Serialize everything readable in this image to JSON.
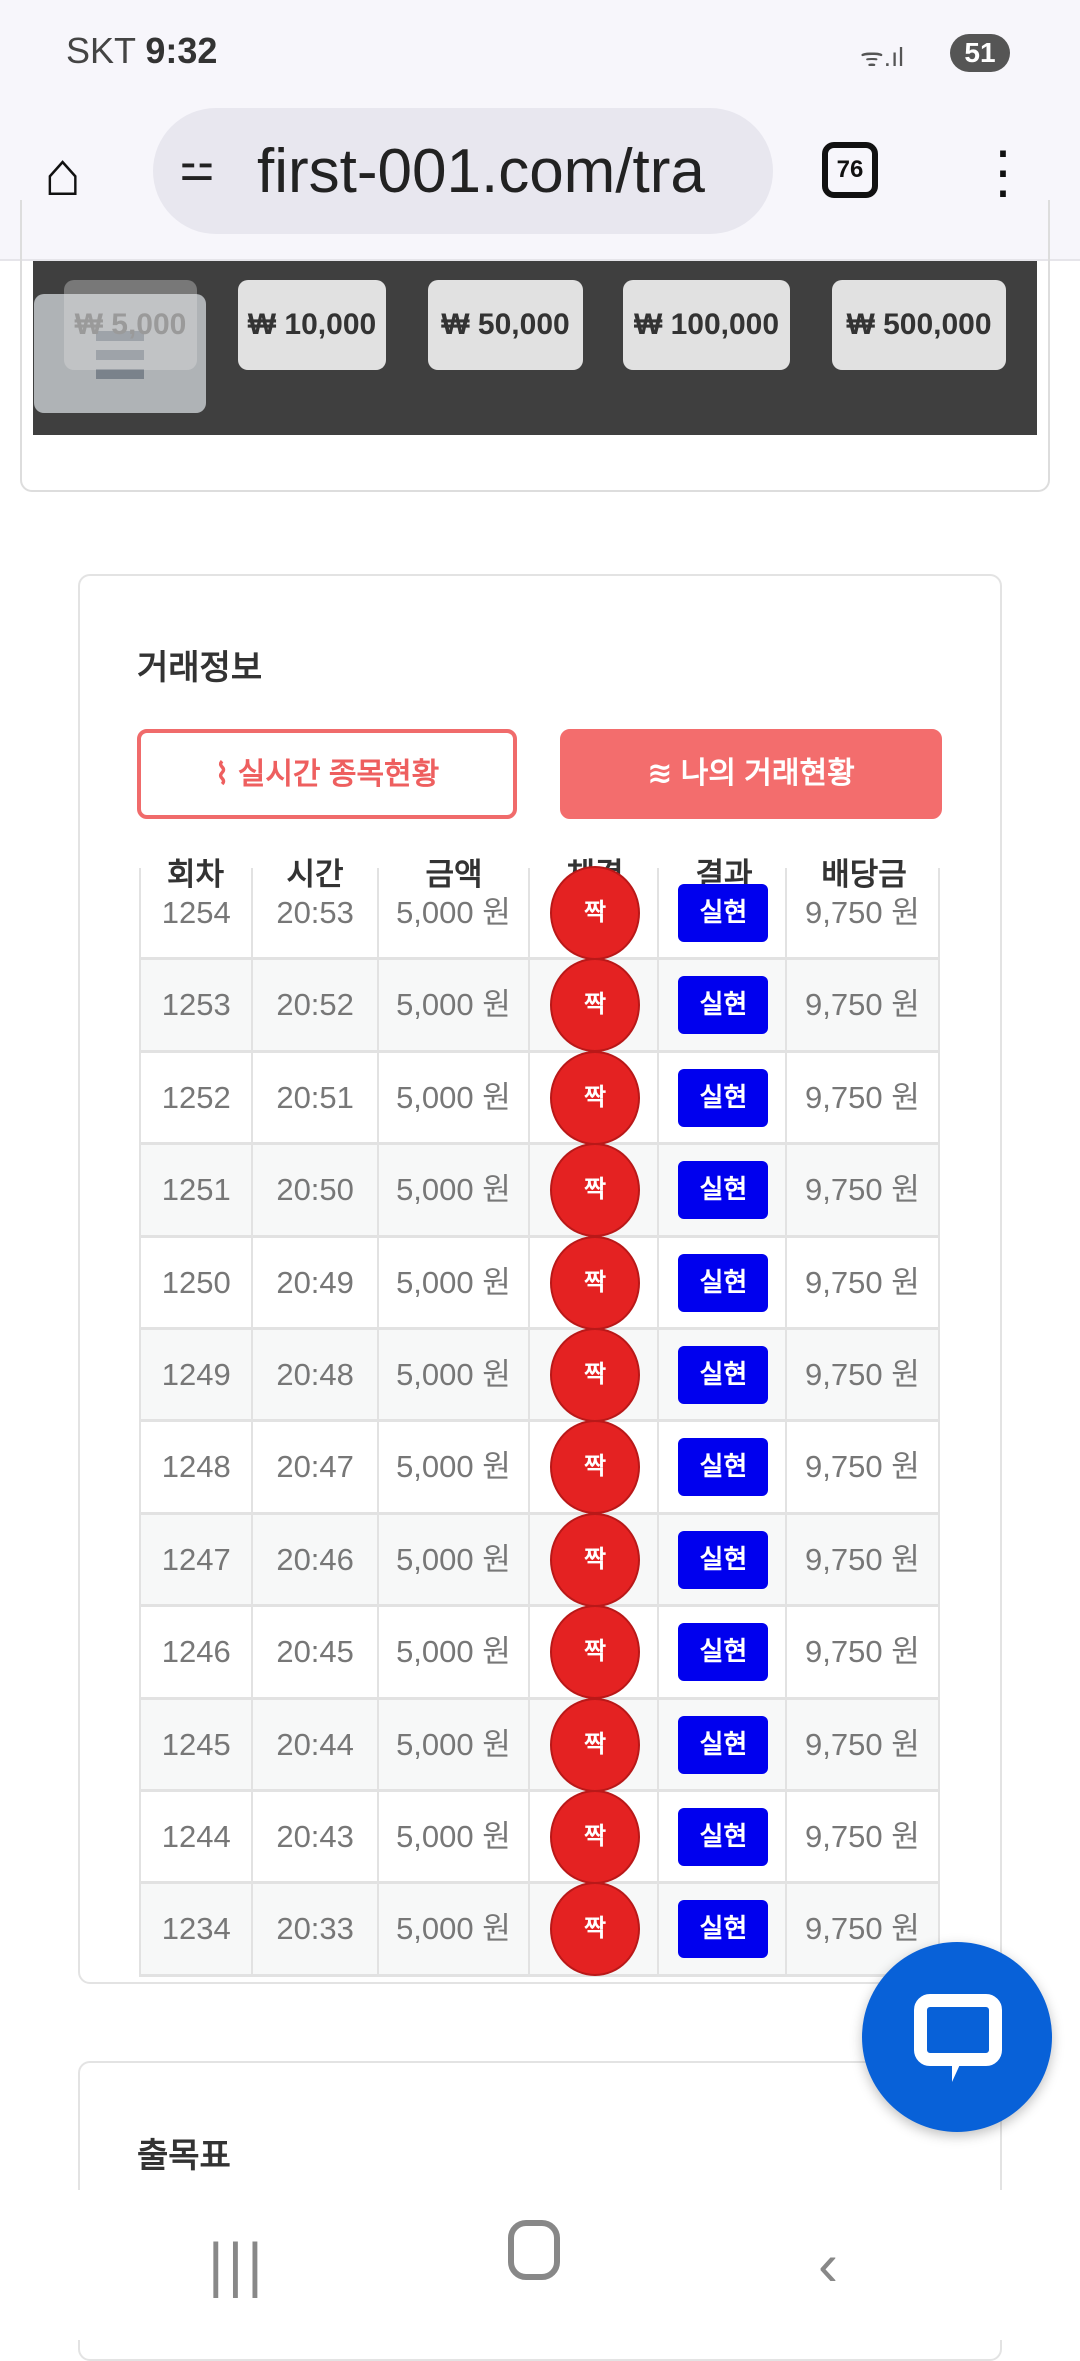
{
  "status_bar": {
    "carrier": "SKT",
    "time": "9:32",
    "battery": "51"
  },
  "browser": {
    "url": "first-001.com/tra",
    "tab_count": "76"
  },
  "amount_buttons": [
    "₩ 5,000",
    "₩ 10,000",
    "₩ 50,000",
    "₩ 100,000",
    "₩ 500,000"
  ],
  "trade_info": {
    "title": "거래정보",
    "tabs": [
      {
        "label": "실시간 종목현황",
        "icon": "pulse-icon",
        "active": false
      },
      {
        "label": "나의 거래현황",
        "icon": "waves-icon",
        "active": true
      }
    ],
    "columns": [
      "회차",
      "시간",
      "금액",
      "체결",
      "결과",
      "배당금"
    ],
    "rows": [
      {
        "round": "1254",
        "time": "20:53",
        "amount": "5,000 원",
        "pick": "짝",
        "result": "실현",
        "payout": "9,750 원"
      },
      {
        "round": "1253",
        "time": "20:52",
        "amount": "5,000 원",
        "pick": "짝",
        "result": "실현",
        "payout": "9,750 원"
      },
      {
        "round": "1252",
        "time": "20:51",
        "amount": "5,000 원",
        "pick": "짝",
        "result": "실현",
        "payout": "9,750 원"
      },
      {
        "round": "1251",
        "time": "20:50",
        "amount": "5,000 원",
        "pick": "짝",
        "result": "실현",
        "payout": "9,750 원"
      },
      {
        "round": "1250",
        "time": "20:49",
        "amount": "5,000 원",
        "pick": "짝",
        "result": "실현",
        "payout": "9,750 원"
      },
      {
        "round": "1249",
        "time": "20:48",
        "amount": "5,000 원",
        "pick": "짝",
        "result": "실현",
        "payout": "9,750 원"
      },
      {
        "round": "1248",
        "time": "20:47",
        "amount": "5,000 원",
        "pick": "짝",
        "result": "실현",
        "payout": "9,750 원"
      },
      {
        "round": "1247",
        "time": "20:46",
        "amount": "5,000 원",
        "pick": "짝",
        "result": "실현",
        "payout": "9,750 원"
      },
      {
        "round": "1246",
        "time": "20:45",
        "amount": "5,000 원",
        "pick": "짝",
        "result": "실현",
        "payout": "9,750 원"
      },
      {
        "round": "1245",
        "time": "20:44",
        "amount": "5,000 원",
        "pick": "짝",
        "result": "실현",
        "payout": "9,750 원"
      },
      {
        "round": "1244",
        "time": "20:43",
        "amount": "5,000 원",
        "pick": "짝",
        "result": "실현",
        "payout": "9,750 원"
      },
      {
        "round": "1234",
        "time": "20:33",
        "amount": "5,000 원",
        "pick": "짝",
        "result": "실현",
        "payout": "9,750 원"
      }
    ]
  },
  "schedule": {
    "title": "출목표"
  },
  "colors": {
    "pick_red": "#e42222",
    "result_blue": "#0000ee",
    "accent": "#f36d6d",
    "chat_blue": "#0861d8"
  }
}
